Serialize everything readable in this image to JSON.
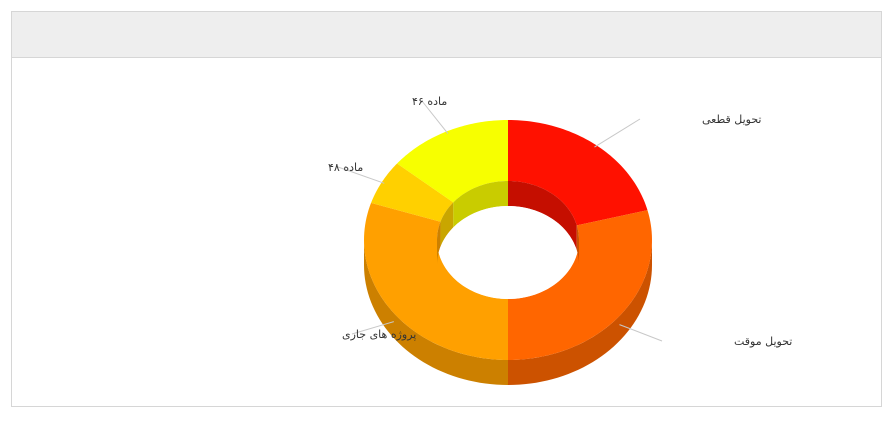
{
  "panel": {
    "title": ""
  },
  "chart_data": {
    "type": "pie",
    "donut": true,
    "three_d": true,
    "title": "",
    "legend": "none",
    "slices": [
      {
        "label": "تحویل قطعی",
        "value": 21,
        "color": "#ff1100",
        "dark": "#c50e00"
      },
      {
        "label": "تحویل موقت",
        "value": 29,
        "color": "#ff6600",
        "dark": "#cc5200"
      },
      {
        "label": "پروژه های جاری",
        "value": 30,
        "color": "#ffa000",
        "dark": "#cc8000"
      },
      {
        "label": "ماده ۴۸",
        "value": 6,
        "color": "#ffd000",
        "dark": "#c9a600"
      },
      {
        "label": "ماده ۴۶",
        "value": 14,
        "color": "#f7ff00",
        "dark": "#c9cc00"
      }
    ]
  }
}
